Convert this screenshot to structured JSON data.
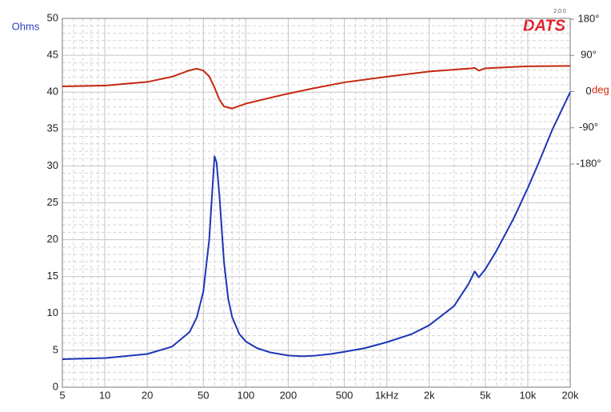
{
  "chart_data": {
    "type": "line",
    "title": "DATS",
    "subtitle": "2.0.0",
    "y_label": "Ohms",
    "y2_label": "deg",
    "log_x": true,
    "grid": true,
    "minor_grid": true,
    "xlim": [
      5,
      20000
    ],
    "xticks": [
      5,
      10,
      20,
      50,
      100,
      200,
      500,
      {
        "value": 1000,
        "label": "1kHz"
      },
      {
        "value": 2000,
        "label": "2k"
      },
      {
        "value": 5000,
        "label": "5k"
      },
      {
        "value": 10000,
        "label": "10k"
      },
      {
        "value": 20000,
        "label": "20k"
      }
    ],
    "ylim": [
      0,
      50
    ],
    "yticks": [
      0,
      5,
      10,
      15,
      20,
      25,
      30,
      35,
      40,
      45,
      50
    ],
    "y2lim": [
      -735,
      182
    ],
    "y2ticks": [
      {
        "value": 180,
        "label": "180°"
      },
      {
        "value": 90,
        "label": "90°"
      },
      0,
      {
        "value": -90,
        "label": "-90°"
      },
      {
        "value": -180,
        "label": "-180°"
      }
    ],
    "series": [
      {
        "color": "#1c36b8",
        "axis": "y",
        "x": [
          5,
          10,
          20,
          30,
          40,
          45,
          50,
          55,
          58,
          60,
          62,
          65,
          70,
          75,
          80,
          90,
          100,
          120,
          150,
          200,
          250,
          300,
          400,
          500,
          700,
          1000,
          1500,
          2000,
          3000,
          3800,
          4200,
          4500,
          5000,
          6000,
          8000,
          10000,
          12000,
          15000,
          20000
        ],
        "values": [
          3.8,
          3.95,
          4.5,
          5.5,
          7.5,
          9.5,
          13,
          20,
          27,
          31.3,
          30.5,
          26,
          17,
          12,
          9.5,
          7.2,
          6.2,
          5.3,
          4.7,
          4.3,
          4.2,
          4.25,
          4.5,
          4.8,
          5.3,
          6.1,
          7.2,
          8.4,
          11,
          14,
          15.7,
          14.9,
          16,
          18.5,
          23,
          27,
          30.5,
          35,
          40
        ]
      },
      {
        "color": "#c4280e",
        "axis": "y2",
        "x": [
          5,
          10,
          20,
          30,
          40,
          45,
          50,
          55,
          60,
          65,
          70,
          80,
          100,
          150,
          200,
          300,
          500,
          1000,
          2000,
          4000,
          4200,
          4500,
          5000,
          10000,
          20000
        ],
        "values": [
          13,
          15,
          24,
          37,
          53,
          57,
          52,
          38,
          10,
          -20,
          -37,
          -42,
          -30,
          -15,
          -5,
          8,
          23,
          37,
          50,
          58,
          59,
          52,
          58,
          63,
          64
        ]
      }
    ]
  }
}
